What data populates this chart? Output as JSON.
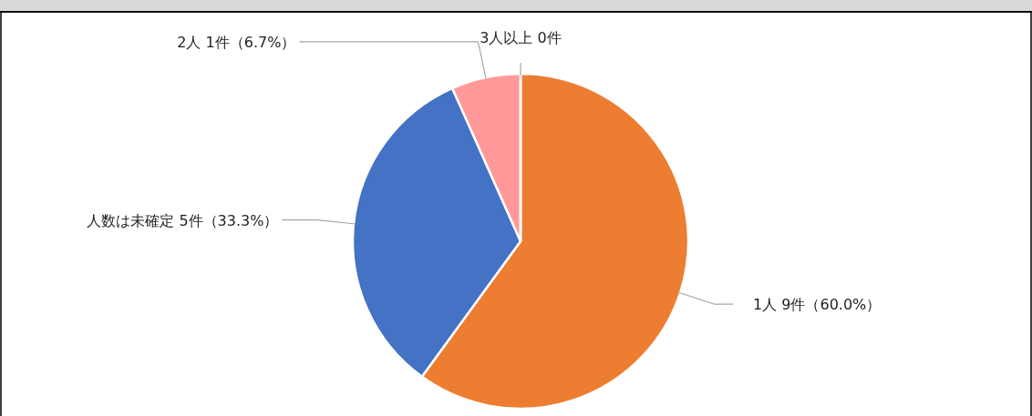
{
  "chart_data": {
    "type": "pie",
    "categories": [
      "1人",
      "人数は未確定",
      "2人",
      "3人以上"
    ],
    "values": [
      9,
      5,
      1,
      0
    ],
    "value_labels": [
      "9件（60.0%）",
      "5件（33.3%）",
      "1件（6.7%）",
      "0件"
    ],
    "colors": [
      "#ed7d31",
      "#4472c4",
      "#ff9999",
      "#a5a5a5"
    ]
  }
}
